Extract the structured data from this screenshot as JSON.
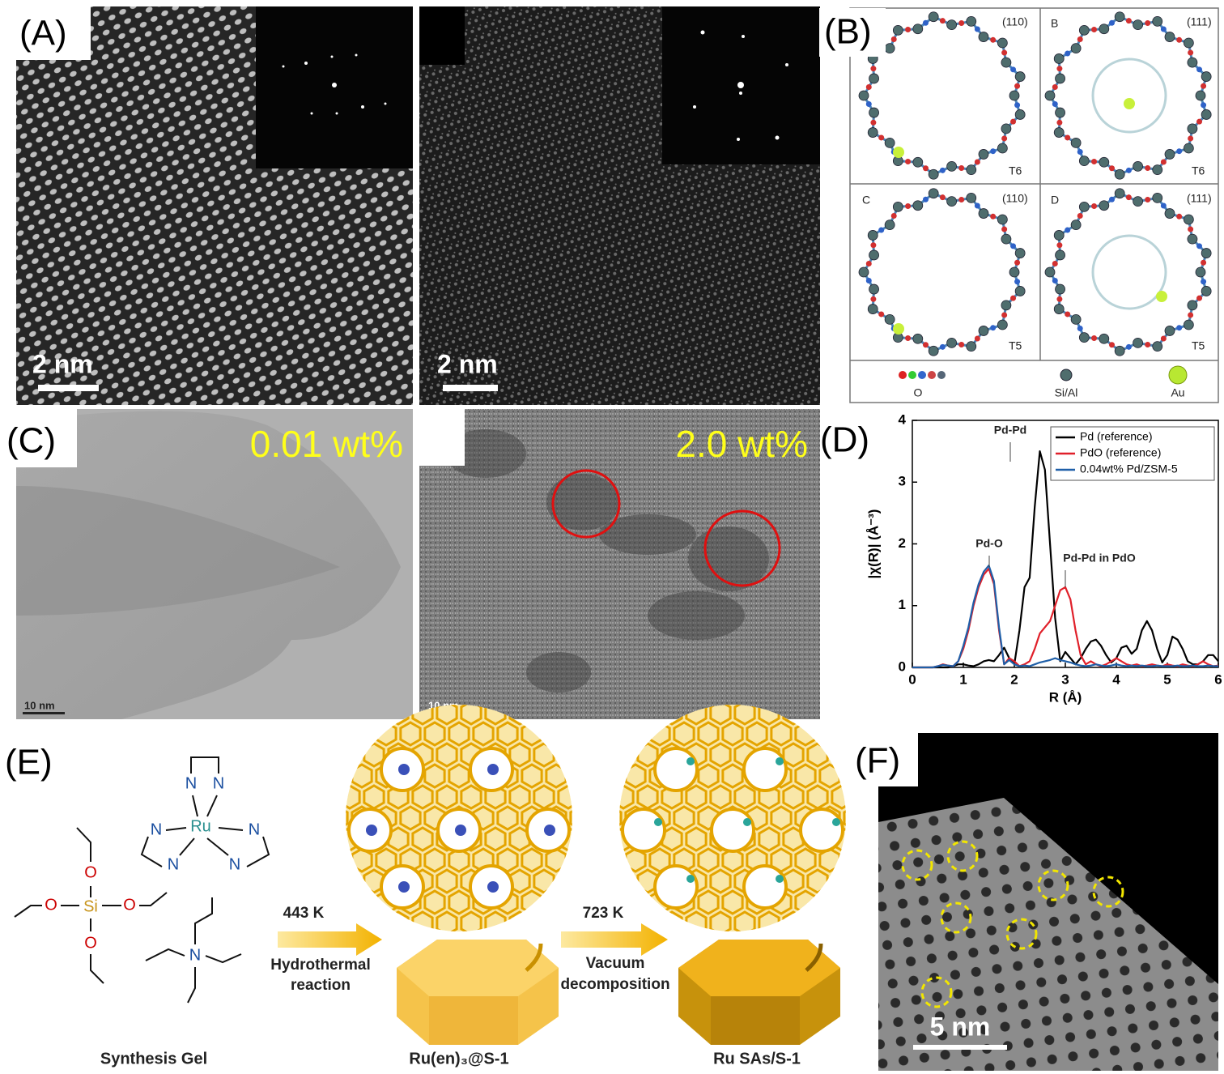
{
  "panels": {
    "A": {
      "label": "(A)",
      "scale_bars": [
        "2 nm",
        "2 nm"
      ]
    },
    "B": {
      "label": "(B)",
      "views": [
        {
          "plane": "(110)",
          "site": "T6"
        },
        {
          "letter": "B",
          "plane": "(111)",
          "site": "T6"
        },
        {
          "letter": "C",
          "plane": "(110)",
          "site": "T5"
        },
        {
          "letter": "D",
          "plane": "(111)",
          "site": "T5"
        }
      ],
      "legend": [
        "O",
        "Si/Al",
        "Au"
      ]
    },
    "C": {
      "label": "(C)",
      "loadings": [
        "0.01 wt%",
        "2.0 wt%"
      ],
      "scale_bars": [
        "10 nm",
        "10 nm"
      ]
    },
    "D": {
      "label": "(D)"
    },
    "E": {
      "label": "(E)",
      "teos_atoms": [
        "O",
        "O",
        "Si",
        "O",
        "O"
      ],
      "ru_complex": {
        "center": "Ru",
        "ligand_atoms": [
          "N",
          "N",
          "N",
          "N",
          "N",
          "N"
        ]
      },
      "tpa_atom": "N",
      "steps": [
        {
          "temperature": "443 K",
          "process": [
            "Hydrothermal",
            "reaction"
          ]
        },
        {
          "temperature": "723 K",
          "process": [
            "Vacuum",
            "decomposition"
          ]
        }
      ],
      "products": [
        "Synthesis Gel",
        "Ru(en)₃@S-1",
        "Ru SAs/S-1"
      ]
    },
    "F": {
      "label": "(F)",
      "scale_bar": "5 nm"
    }
  },
  "chart_data": {
    "type": "line",
    "xlabel": "R (Å)",
    "ylabel": "|χ(R)| (Å⁻³)",
    "annotations": [
      "Pd-Pd",
      "Pd-O",
      "Pd-Pd in PdO"
    ],
    "xlim": [
      0,
      6
    ],
    "ylim": [
      0,
      4
    ],
    "xticks": [
      0,
      1,
      2,
      3,
      4,
      5,
      6
    ],
    "yticks": [
      0,
      1,
      2,
      3,
      4
    ],
    "legend": "upper right",
    "x": [
      0,
      0.1,
      0.2,
      0.3,
      0.4,
      0.5,
      0.6,
      0.7,
      0.8,
      0.9,
      1.0,
      1.1,
      1.2,
      1.3,
      1.4,
      1.5,
      1.6,
      1.7,
      1.8,
      1.9,
      2.0,
      2.1,
      2.2,
      2.3,
      2.4,
      2.5,
      2.6,
      2.7,
      2.8,
      2.9,
      3.0,
      3.1,
      3.2,
      3.3,
      3.4,
      3.5,
      3.6,
      3.7,
      3.8,
      3.9,
      4.0,
      4.1,
      4.2,
      4.3,
      4.4,
      4.5,
      4.6,
      4.7,
      4.8,
      4.9,
      5.0,
      5.1,
      5.2,
      5.3,
      5.4,
      5.5,
      5.6,
      5.7,
      5.8,
      5.9,
      6.0
    ],
    "series": [
      {
        "name": "Pd (reference)",
        "color": "#000000",
        "values": [
          0,
          0,
          0,
          0,
          0,
          0,
          0,
          0,
          0.02,
          0.05,
          0.05,
          0.03,
          0.02,
          0.05,
          0.1,
          0.12,
          0.1,
          0.2,
          0.32,
          0.15,
          0.05,
          0.6,
          1.3,
          1.45,
          2.6,
          3.5,
          3.2,
          2.0,
          0.8,
          0.1,
          0.25,
          0.15,
          0.05,
          0.15,
          0.3,
          0.42,
          0.45,
          0.35,
          0.2,
          0.08,
          0.15,
          0.32,
          0.35,
          0.22,
          0.3,
          0.6,
          0.75,
          0.6,
          0.3,
          0.08,
          0.2,
          0.5,
          0.45,
          0.3,
          0.1,
          0.05,
          0.05,
          0.1,
          0.2,
          0.2,
          0.1
        ]
      },
      {
        "name": "PdO (reference)",
        "color": "#e0202a",
        "values": [
          0,
          0,
          0,
          0,
          0,
          0.02,
          0.05,
          0.03,
          0.02,
          0.1,
          0.3,
          0.6,
          1.0,
          1.3,
          1.5,
          1.6,
          1.35,
          0.6,
          0.05,
          0.15,
          0.1,
          0.02,
          0.05,
          0.1,
          0.3,
          0.55,
          0.65,
          0.75,
          1.0,
          1.25,
          1.3,
          1.1,
          0.6,
          0.2,
          0.05,
          0.1,
          0.05,
          0.02,
          0.05,
          0.1,
          0.15,
          0.1,
          0.05,
          0.03,
          0.05,
          0.02,
          0.03,
          0.05,
          0.03,
          0.02,
          0.05,
          0.03,
          0.02,
          0.05,
          0.03,
          0.02,
          0.05,
          0.1,
          0.05,
          0.02,
          0.03
        ]
      },
      {
        "name": "0.04wt% Pd/ZSM-5",
        "color": "#1f5fa8",
        "values": [
          0,
          0,
          0,
          0,
          0,
          0.02,
          0.04,
          0.03,
          0.02,
          0.1,
          0.35,
          0.65,
          1.05,
          1.35,
          1.55,
          1.65,
          1.4,
          0.65,
          0.05,
          0.12,
          0.05,
          0.02,
          0.03,
          0.02,
          0.05,
          0.08,
          0.1,
          0.12,
          0.15,
          0.12,
          0.1,
          0.08,
          0.05,
          0.03,
          0.02,
          0.03,
          0.05,
          0.03,
          0.02,
          0.03,
          0.05,
          0.03,
          0.02,
          0.03,
          0.02,
          0.03,
          0.02,
          0.02,
          0.03,
          0.02,
          0.02,
          0.02,
          0.03,
          0.02,
          0.02,
          0.03,
          0.02,
          0.02,
          0.03,
          0.02,
          0.02
        ]
      }
    ]
  }
}
